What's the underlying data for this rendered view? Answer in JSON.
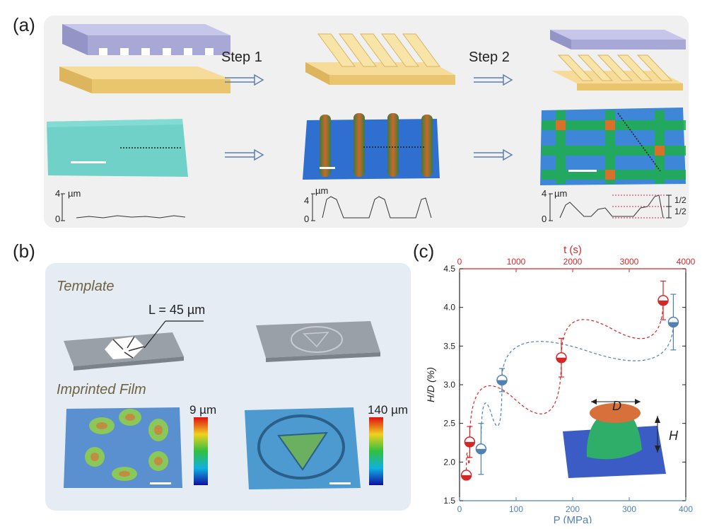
{
  "figure": {
    "panel_a": {
      "letter": "(a)",
      "step1_label": "Step 1",
      "step2_label": "Step 2",
      "profile_unit": "µm",
      "profile_tick_top": "4",
      "profile_tick_bottom": "0",
      "half_label_top": "1/2",
      "half_label_bottom": "1/2"
    },
    "panel_b": {
      "letter": "(b)",
      "template_label": "Template",
      "imprinted_label": "Imprinted Film",
      "length_annotation": "L = 45 µm",
      "colorbar1_max": "9 µm",
      "colorbar2_max": "140 µm"
    },
    "panel_c": {
      "letter": "(c)",
      "inset_label_d": "D",
      "inset_label_h": "H"
    }
  },
  "chart_data": {
    "type": "scatter",
    "ylabel": "H/D (%)",
    "xlabel_bottom": "P (MPa)",
    "xlabel_top": "t (s)",
    "ylim": [
      1.5,
      4.5
    ],
    "xlim_bottom": [
      0,
      400
    ],
    "xlim_top": [
      0,
      4000
    ],
    "yticks": [
      "1.5",
      "2.0",
      "2.5",
      "3.0",
      "3.5",
      "4.0",
      "4.5"
    ],
    "xticks_bottom": [
      "0",
      "100",
      "200",
      "300",
      "400"
    ],
    "xticks_top": [
      "0",
      "1000",
      "2000",
      "3000",
      "4000"
    ],
    "series": [
      {
        "axis": "top",
        "color": "#d62728",
        "points": [
          {
            "x": 120,
            "y": 1.83,
            "err": 0
          },
          {
            "x": 180,
            "y": 2.26,
            "err": 0.2
          },
          {
            "x": 1800,
            "y": 3.35,
            "err": 0.25
          },
          {
            "x": 3600,
            "y": 4.09,
            "err": 0.25
          }
        ]
      },
      {
        "axis": "bottom",
        "color": "#4f81b3",
        "points": [
          {
            "x": 38,
            "y": 2.17,
            "err": 0.33
          },
          {
            "x": 75,
            "y": 3.06,
            "err": 0.15
          },
          {
            "x": 378,
            "y": 3.81,
            "err": 0.36
          }
        ]
      }
    ],
    "legend": "none",
    "grid": "off"
  }
}
